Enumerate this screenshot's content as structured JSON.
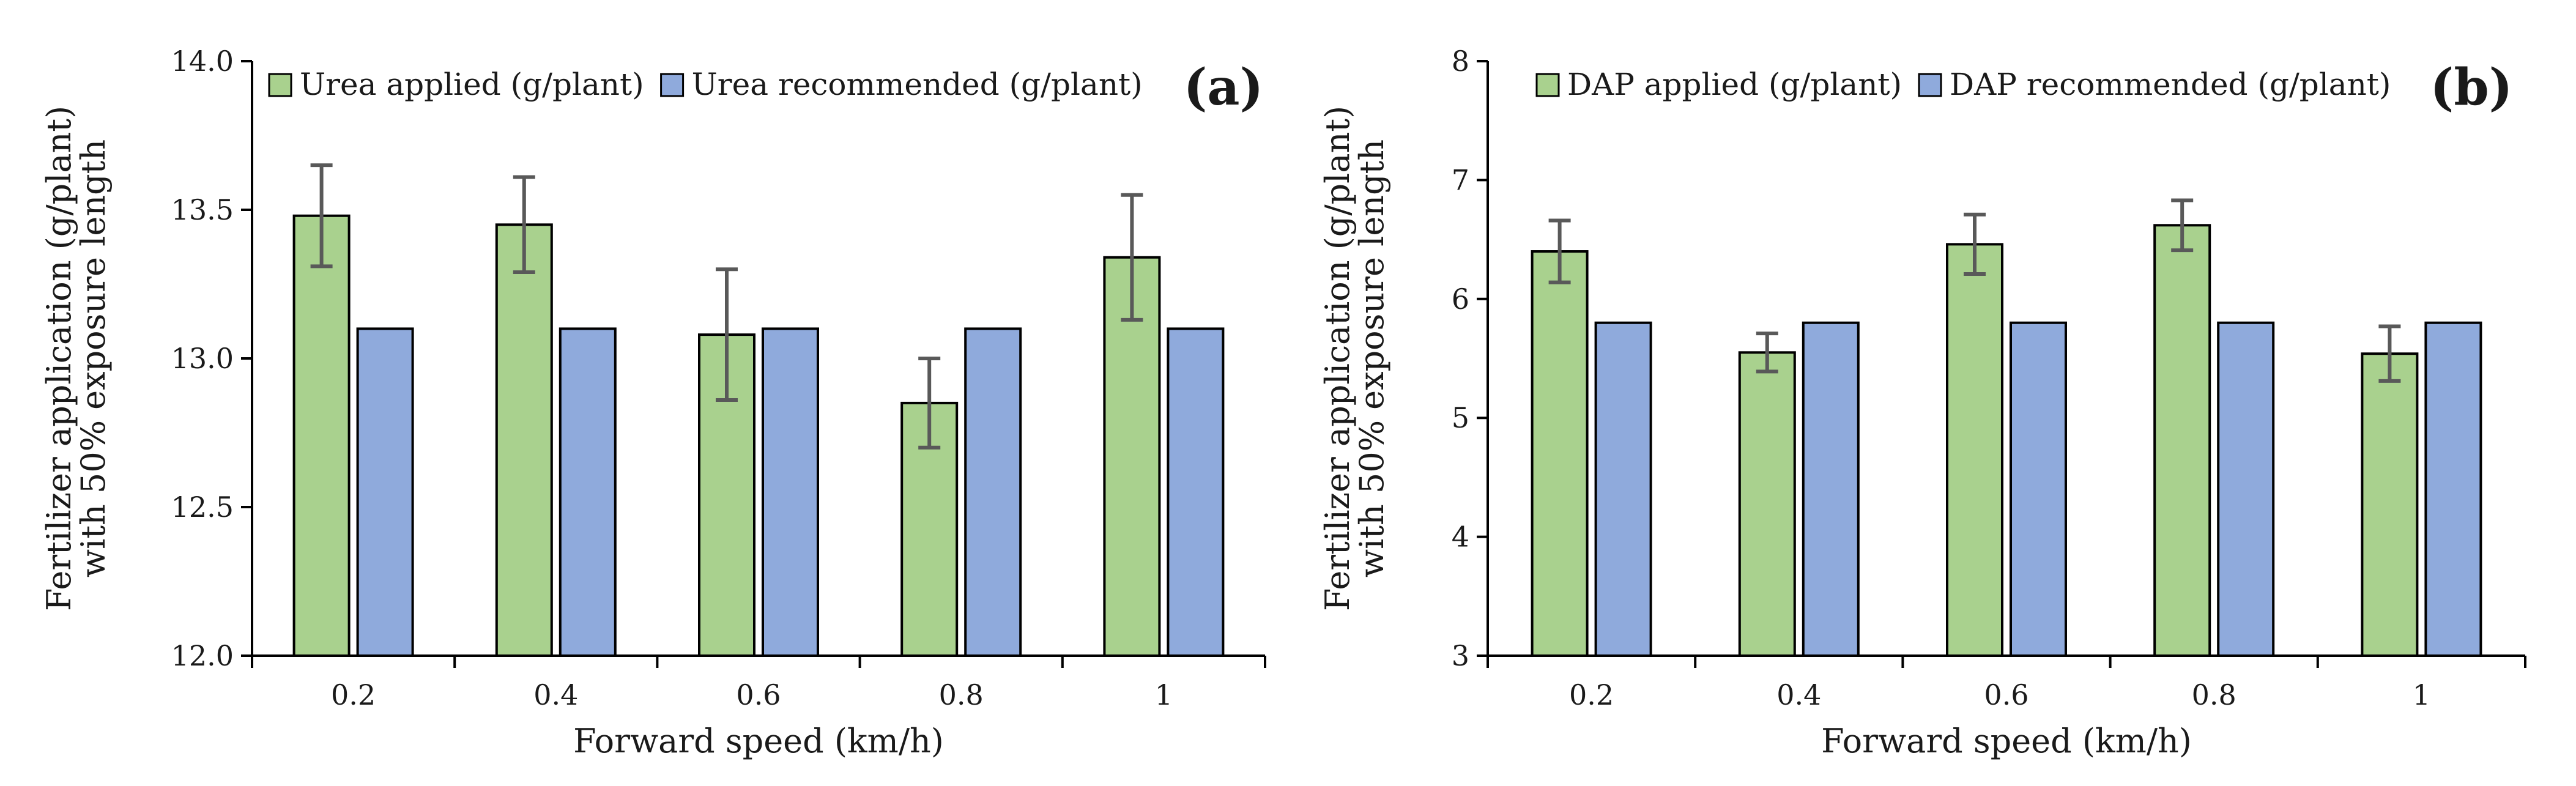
{
  "colors": {
    "applied_fill": "#a9d18e",
    "recommended_fill": "#8faadc",
    "bar_stroke": "#000000",
    "error_bar": "#595959",
    "axis": "#000000"
  },
  "chart_data": [
    {
      "id": "a",
      "type": "bar",
      "panel_label": "(a)",
      "xlabel": "Forward speed (km/h)",
      "ylabel_lines": [
        "Fertilizer application (g/plant)",
        "with 50% exposure length"
      ],
      "categories": [
        "0.2",
        "0.4",
        "0.6",
        "0.8",
        "1"
      ],
      "ylim": [
        12.0,
        14.0
      ],
      "yticks": [
        12.0,
        12.5,
        13.0,
        13.5,
        14.0
      ],
      "ytick_labels": [
        "12.0",
        "12.5",
        "13.0",
        "13.5",
        "14.0"
      ],
      "legend_position": "top-left",
      "series": [
        {
          "name": "Urea applied (g/plant)",
          "values": [
            13.48,
            13.45,
            13.08,
            12.85,
            13.34
          ],
          "error": [
            0.17,
            0.16,
            0.22,
            0.15,
            0.21
          ]
        },
        {
          "name": "Urea recommended (g/plant)",
          "values": [
            13.1,
            13.1,
            13.1,
            13.1,
            13.1
          ]
        }
      ]
    },
    {
      "id": "b",
      "type": "bar",
      "panel_label": "(b)",
      "xlabel": "Forward speed (km/h)",
      "ylabel_lines": [
        "Fertilizer application (g/plant)",
        "with 50% exposure length"
      ],
      "categories": [
        "0.2",
        "0.4",
        "0.6",
        "0.8",
        "1"
      ],
      "ylim": [
        3,
        8
      ],
      "yticks": [
        3,
        4,
        5,
        6,
        7,
        8
      ],
      "ytick_labels": [
        "3",
        "4",
        "5",
        "6",
        "7",
        "8"
      ],
      "legend_position": "top-left",
      "series": [
        {
          "name": "DAP applied (g/plant)",
          "values": [
            6.4,
            5.55,
            6.46,
            6.62,
            5.54
          ],
          "error": [
            0.26,
            0.16,
            0.25,
            0.21,
            0.23
          ]
        },
        {
          "name": "DAP recommended (g/plant)",
          "values": [
            5.8,
            5.8,
            5.8,
            5.8,
            5.8
          ]
        }
      ]
    }
  ]
}
